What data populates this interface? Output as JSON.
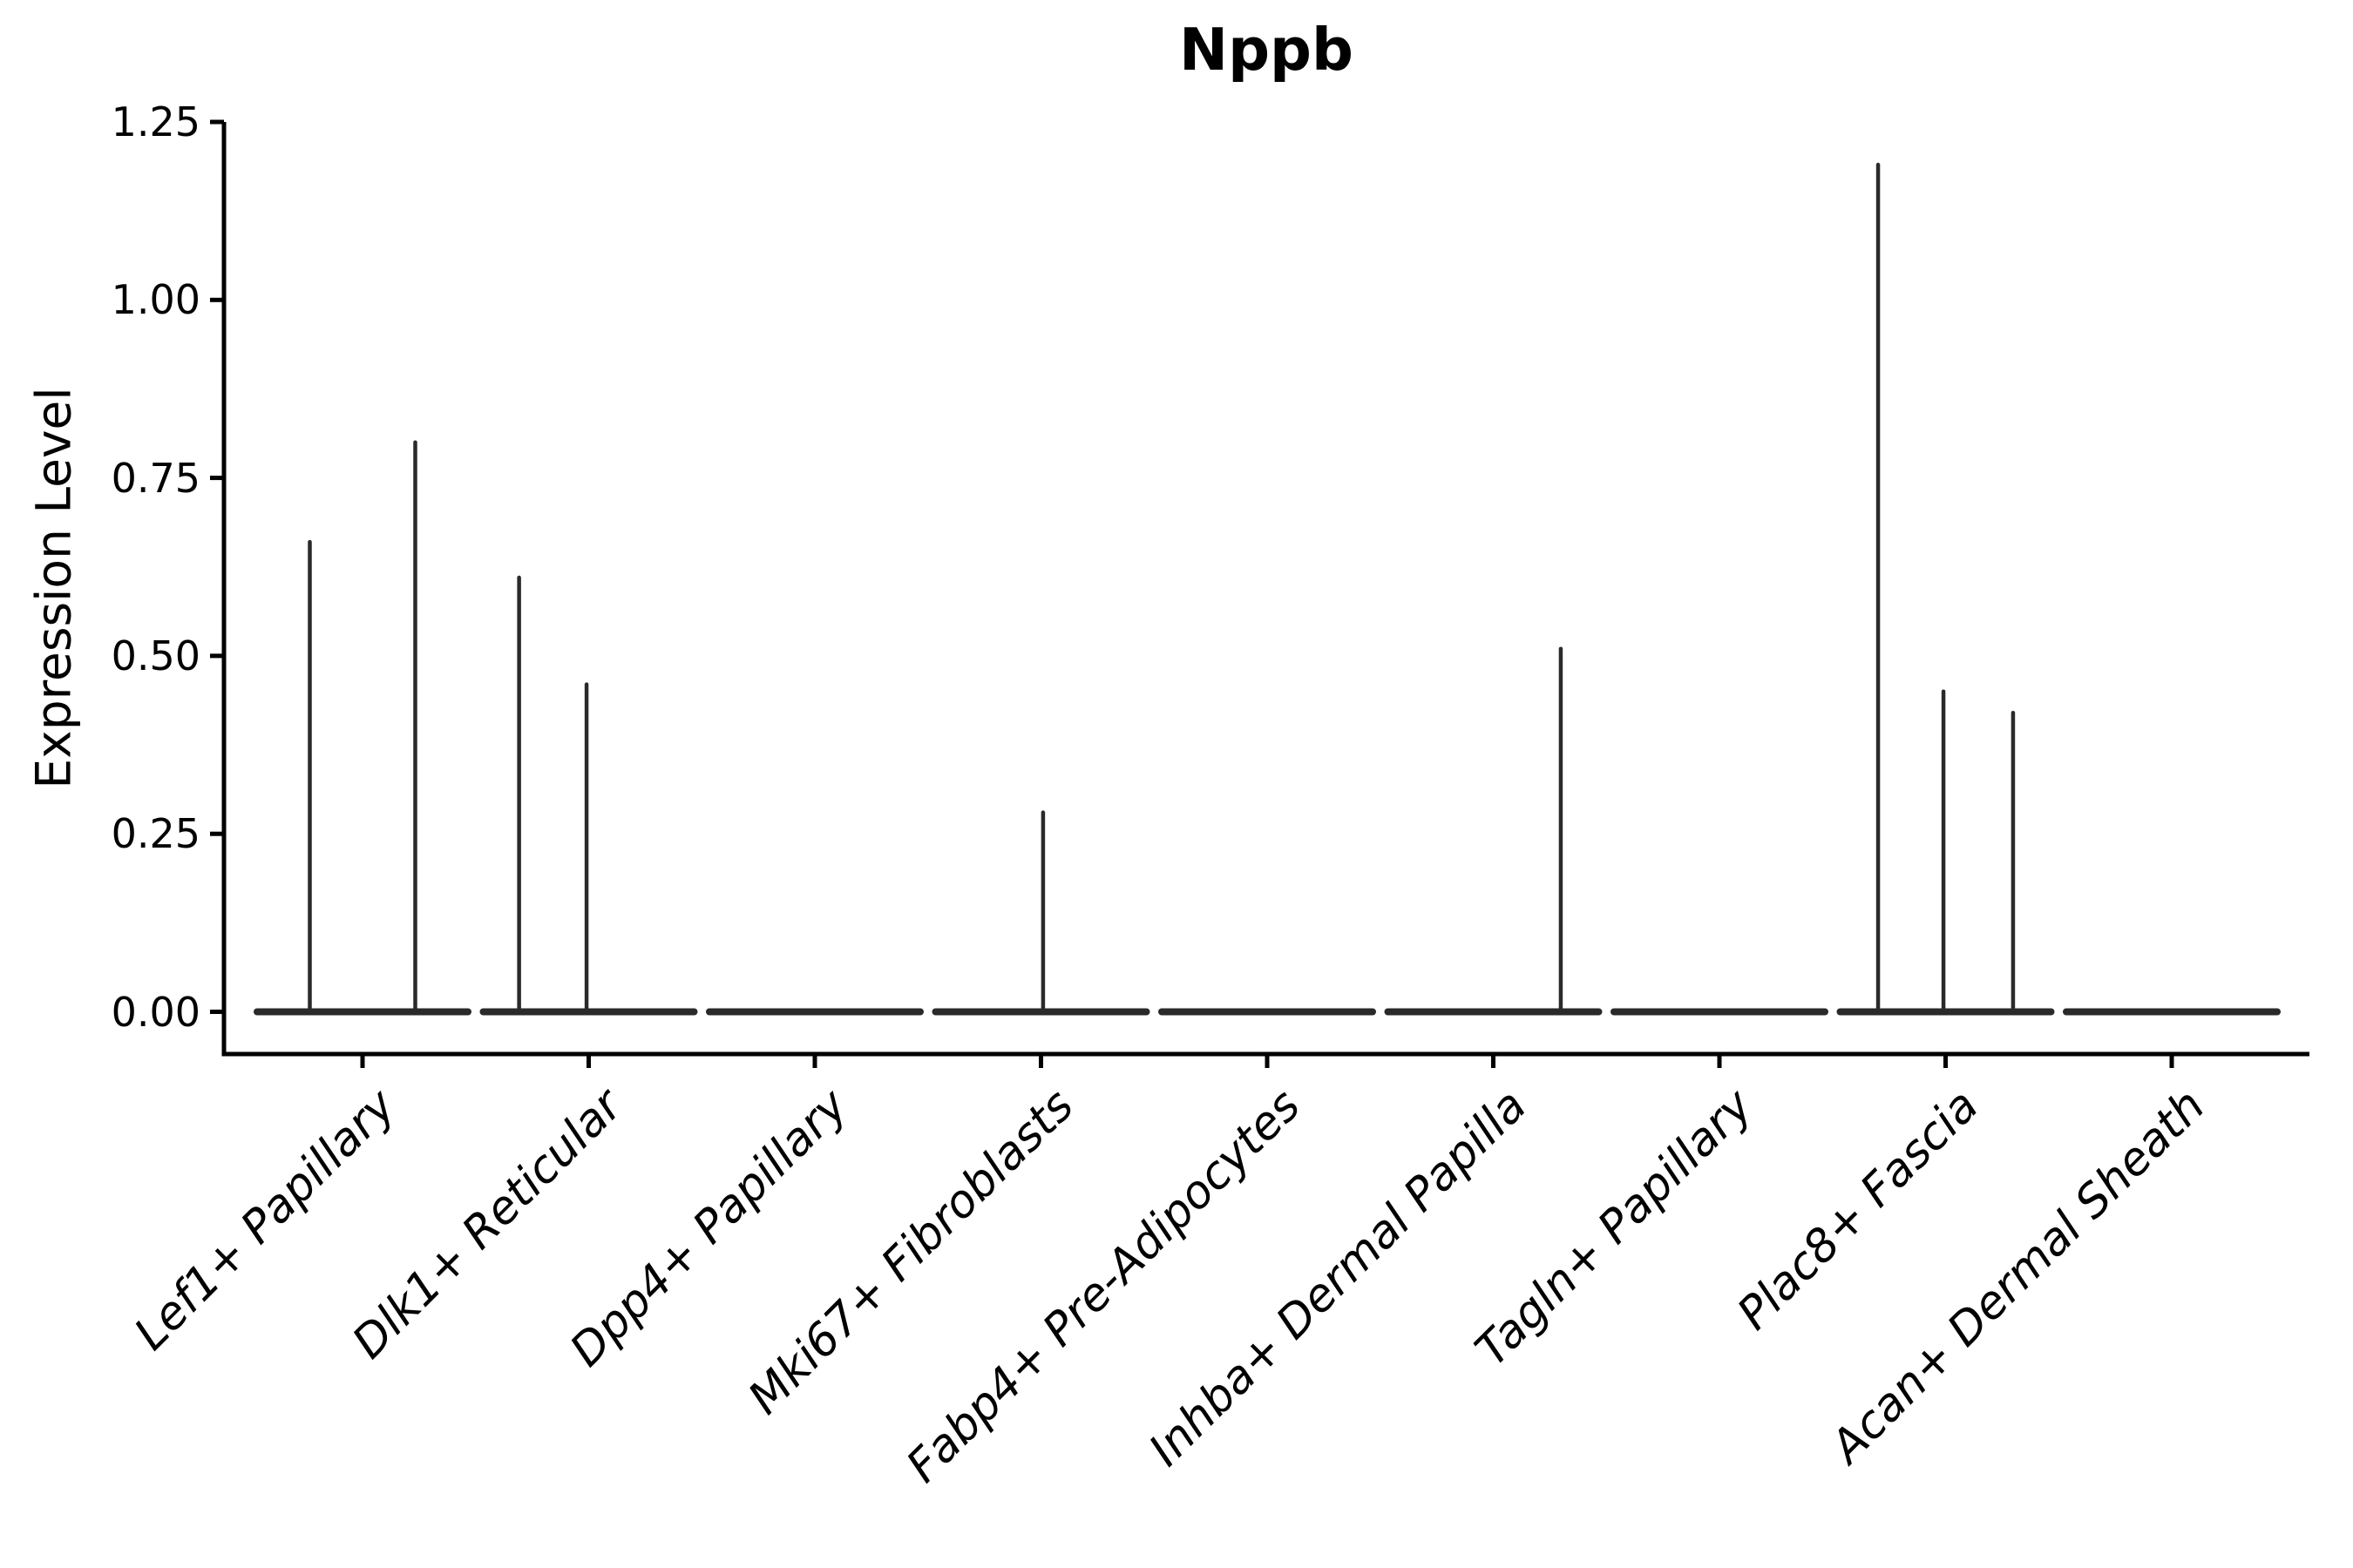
{
  "title": "Nppb",
  "ylabel": "Expression Level",
  "chart_data": {
    "type": "violin",
    "title": "Nppb",
    "xlabel": "",
    "ylabel": "Expression Level",
    "ylim": [
      -0.06,
      1.25
    ],
    "grid": false,
    "legend": "none",
    "yticks": [
      {
        "label": "0.00",
        "value": 0.0
      },
      {
        "label": "0.25",
        "value": 0.25
      },
      {
        "label": "0.50",
        "value": 0.5
      },
      {
        "label": "0.75",
        "value": 0.75
      },
      {
        "label": "1.00",
        "value": 1.0
      },
      {
        "label": "1.25",
        "value": 1.25
      }
    ],
    "categories": [
      "Lef1+ Papillary",
      "Dlk1+ Reticular",
      "Dpp4+ Papillary",
      "Mki67+ Fibroblasts",
      "Fabp4+ Pre-Adipocytes",
      "Inhba+ Dermal Papilla",
      "Tagln+ Papillary",
      "Plac8+ Fascia",
      "Acan+ Dermal Sheath"
    ],
    "violins": [
      {
        "category": "Lef1+ Papillary",
        "baseline_value": 0,
        "spikes": [
          {
            "dx": -0.25,
            "value": 0.66
          },
          {
            "dx": 0.25,
            "value": 0.8
          }
        ]
      },
      {
        "category": "Dlk1+ Reticular",
        "baseline_value": 0,
        "spikes": [
          {
            "dx": -0.33,
            "value": 0.61
          },
          {
            "dx": -0.01,
            "value": 0.46
          }
        ]
      },
      {
        "category": "Dpp4+ Papillary",
        "baseline_value": 0,
        "spikes": []
      },
      {
        "category": "Mki67+ Fibroblasts",
        "baseline_value": 0,
        "spikes": [
          {
            "dx": 0.01,
            "value": 0.28
          }
        ]
      },
      {
        "category": "Fabp4+ Pre-Adipocytes",
        "baseline_value": 0,
        "spikes": []
      },
      {
        "category": "Inhba+ Dermal Papilla",
        "baseline_value": 0,
        "spikes": [
          {
            "dx": 0.32,
            "value": 0.51
          }
        ]
      },
      {
        "category": "Tagln+ Papillary",
        "baseline_value": 0,
        "spikes": []
      },
      {
        "category": "Plac8+ Fascia",
        "baseline_value": 0,
        "spikes": [
          {
            "dx": -0.32,
            "value": 1.19
          },
          {
            "dx": -0.01,
            "value": 0.45
          },
          {
            "dx": 0.32,
            "value": 0.42
          }
        ]
      },
      {
        "category": "Acan+ Dermal Sheath",
        "baseline_value": 0,
        "spikes": []
      }
    ],
    "colors": {
      "violin_line": "#2a2a2a",
      "axis": "#000000",
      "text": "#000000",
      "background": "#ffffff"
    }
  }
}
